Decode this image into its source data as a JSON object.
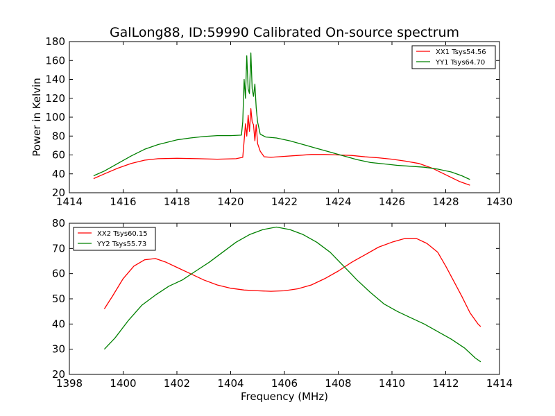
{
  "chart_data": [
    {
      "type": "line",
      "title": "GalLong88, ID:59990 Calibrated On-source spectrum",
      "xlabel": "",
      "ylabel": "Power in Kelvin",
      "xlim": [
        1414,
        1430
      ],
      "ylim": [
        20,
        180
      ],
      "xticks": [
        1414,
        1416,
        1418,
        1420,
        1422,
        1424,
        1426,
        1428,
        1430
      ],
      "yticks": [
        20,
        40,
        60,
        80,
        100,
        120,
        140,
        160,
        180
      ],
      "grid": false,
      "legend_position": "top-right",
      "series": [
        {
          "name": "XX1 Tsys54.56",
          "color": "#ff0000",
          "points": [
            [
              1414.9,
              35
            ],
            [
              1415.3,
              40
            ],
            [
              1415.8,
              46
            ],
            [
              1416.3,
              51
            ],
            [
              1416.8,
              54.5
            ],
            [
              1417.3,
              56
            ],
            [
              1418,
              56.5
            ],
            [
              1418.8,
              56
            ],
            [
              1419.5,
              55.5
            ],
            [
              1420.2,
              56
            ],
            [
              1420.45,
              57.5
            ],
            [
              1420.5,
              75
            ],
            [
              1420.55,
              93
            ],
            [
              1420.6,
              80
            ],
            [
              1420.65,
              102
            ],
            [
              1420.7,
              85
            ],
            [
              1420.75,
              109
            ],
            [
              1420.8,
              95
            ],
            [
              1420.85,
              92
            ],
            [
              1420.9,
              75
            ],
            [
              1420.95,
              92
            ],
            [
              1421.0,
              72
            ],
            [
              1421.1,
              64
            ],
            [
              1421.25,
              58
            ],
            [
              1421.5,
              57.5
            ],
            [
              1422,
              58.5
            ],
            [
              1422.5,
              59.5
            ],
            [
              1423,
              60.5
            ],
            [
              1423.5,
              60.5
            ],
            [
              1424,
              60
            ],
            [
              1424.5,
              59.5
            ],
            [
              1425,
              58
            ],
            [
              1425.5,
              57
            ],
            [
              1426,
              55.5
            ],
            [
              1426.5,
              53.5
            ],
            [
              1427,
              51
            ],
            [
              1427.5,
              46
            ],
            [
              1428,
              39
            ],
            [
              1428.5,
              32
            ],
            [
              1428.9,
              28
            ]
          ]
        },
        {
          "name": "YY1 Tsys64.70",
          "color": "#008000",
          "points": [
            [
              1414.9,
              38
            ],
            [
              1415.3,
              43
            ],
            [
              1415.8,
              51
            ],
            [
              1416.3,
              59
            ],
            [
              1416.8,
              66
            ],
            [
              1417.3,
              71
            ],
            [
              1418,
              76
            ],
            [
              1418.5,
              78
            ],
            [
              1419,
              79.5
            ],
            [
              1419.5,
              80.5
            ],
            [
              1420,
              80.5
            ],
            [
              1420.4,
              81
            ],
            [
              1420.45,
              95
            ],
            [
              1420.5,
              140
            ],
            [
              1420.55,
              120
            ],
            [
              1420.6,
              165
            ],
            [
              1420.65,
              130
            ],
            [
              1420.7,
              125
            ],
            [
              1420.75,
              168
            ],
            [
              1420.8,
              130
            ],
            [
              1420.85,
              122
            ],
            [
              1420.9,
              135
            ],
            [
              1420.95,
              110
            ],
            [
              1421.0,
              95
            ],
            [
              1421.1,
              82
            ],
            [
              1421.3,
              79
            ],
            [
              1421.7,
              78
            ],
            [
              1422.2,
              75
            ],
            [
              1422.7,
              71
            ],
            [
              1423.2,
              67
            ],
            [
              1423.7,
              63
            ],
            [
              1424.2,
              59
            ],
            [
              1424.7,
              55
            ],
            [
              1425.2,
              52
            ],
            [
              1425.7,
              50.5
            ],
            [
              1426.2,
              49
            ],
            [
              1426.7,
              48
            ],
            [
              1427.2,
              47
            ],
            [
              1427.7,
              45
            ],
            [
              1428.2,
              42
            ],
            [
              1428.6,
              38
            ],
            [
              1428.9,
              34
            ]
          ]
        }
      ]
    },
    {
      "type": "line",
      "title": "",
      "xlabel": "Frequency (MHz)",
      "ylabel": "",
      "xlim": [
        1398,
        1414
      ],
      "ylim": [
        20,
        80
      ],
      "xticks": [
        1398,
        1400,
        1402,
        1404,
        1406,
        1408,
        1410,
        1412,
        1414
      ],
      "yticks": [
        20,
        30,
        40,
        50,
        60,
        70,
        80
      ],
      "grid": false,
      "legend_position": "top-left",
      "series": [
        {
          "name": "XX2 Tsys60.15",
          "color": "#ff0000",
          "points": [
            [
              1399.3,
              46
            ],
            [
              1399.6,
              51
            ],
            [
              1400,
              58
            ],
            [
              1400.4,
              63
            ],
            [
              1400.8,
              65.5
            ],
            [
              1401.2,
              66
            ],
            [
              1401.6,
              64.5
            ],
            [
              1402,
              62.5
            ],
            [
              1402.5,
              60
            ],
            [
              1403,
              57.5
            ],
            [
              1403.5,
              55.5
            ],
            [
              1404,
              54.2
            ],
            [
              1404.5,
              53.5
            ],
            [
              1405,
              53.2
            ],
            [
              1405.5,
              53
            ],
            [
              1406,
              53.2
            ],
            [
              1406.5,
              54
            ],
            [
              1407,
              55.5
            ],
            [
              1407.5,
              58
            ],
            [
              1408,
              61
            ],
            [
              1408.5,
              64.5
            ],
            [
              1409,
              67.5
            ],
            [
              1409.5,
              70.5
            ],
            [
              1410,
              72.5
            ],
            [
              1410.5,
              74
            ],
            [
              1410.9,
              74
            ],
            [
              1411.3,
              72
            ],
            [
              1411.7,
              68.5
            ],
            [
              1412,
              63
            ],
            [
              1412.3,
              57
            ],
            [
              1412.6,
              51
            ],
            [
              1412.9,
              44.5
            ],
            [
              1413.2,
              40
            ],
            [
              1413.3,
              39
            ]
          ]
        },
        {
          "name": "YY2 Tsys55.73",
          "color": "#008000",
          "points": [
            [
              1399.3,
              30
            ],
            [
              1399.7,
              34.5
            ],
            [
              1400.2,
              41.5
            ],
            [
              1400.7,
              47.5
            ],
            [
              1401.2,
              51.5
            ],
            [
              1401.7,
              55
            ],
            [
              1402.2,
              57.5
            ],
            [
              1402.7,
              61
            ],
            [
              1403.2,
              64.5
            ],
            [
              1403.7,
              68.5
            ],
            [
              1404.2,
              72.5
            ],
            [
              1404.7,
              75.5
            ],
            [
              1405.2,
              77.5
            ],
            [
              1405.7,
              78.5
            ],
            [
              1406.2,
              77.5
            ],
            [
              1406.7,
              75.5
            ],
            [
              1407.2,
              72.5
            ],
            [
              1407.7,
              68.5
            ],
            [
              1408.2,
              63
            ],
            [
              1408.7,
              57.5
            ],
            [
              1409.2,
              52.5
            ],
            [
              1409.7,
              48
            ],
            [
              1410.2,
              45
            ],
            [
              1410.7,
              42.5
            ],
            [
              1411.2,
              40
            ],
            [
              1411.7,
              37
            ],
            [
              1412.2,
              34
            ],
            [
              1412.7,
              30.5
            ],
            [
              1413.1,
              26.5
            ],
            [
              1413.3,
              25
            ]
          ]
        }
      ]
    }
  ]
}
